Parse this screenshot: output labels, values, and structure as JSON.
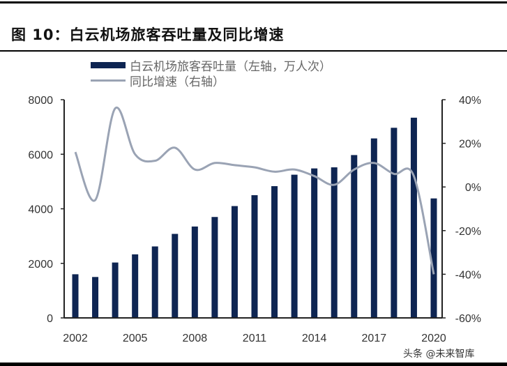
{
  "header": {
    "title": "图 10：白云机场旅客吞吐量及同比增速"
  },
  "legend": {
    "bar_label": "白云机场旅客吞吐量（左轴，万人次）",
    "line_label": "同比增速（右轴）"
  },
  "watermark": "头条 @未来智库",
  "colors": {
    "bar": "#0e2552",
    "line": "#9aa3b4",
    "axis": "#222222"
  },
  "chart_data": {
    "type": "bar+line",
    "title": "图 10：白云机场旅客吞吐量及同比增速",
    "categories": [
      "2002",
      "2003",
      "2004",
      "2005",
      "2006",
      "2007",
      "2008",
      "2009",
      "2010",
      "2011",
      "2012",
      "2013",
      "2014",
      "2015",
      "2016",
      "2017",
      "2018",
      "2019",
      "2020"
    ],
    "x_tick_labels": [
      "2002",
      "2005",
      "2008",
      "2011",
      "2014",
      "2017",
      "2020"
    ],
    "series": [
      {
        "name": "白云机场旅客吞吐量（左轴，万人次）",
        "type": "bar",
        "axis": "left",
        "values": [
          1600,
          1500,
          2030,
          2330,
          2620,
          3080,
          3350,
          3700,
          4100,
          4500,
          4830,
          5250,
          5480,
          5520,
          5970,
          6580,
          6970,
          7340,
          4380
        ]
      },
      {
        "name": "同比增速（右轴）",
        "type": "line",
        "axis": "right",
        "values": [
          16,
          -6,
          36,
          15,
          12,
          18,
          8,
          11,
          10,
          9,
          7,
          8,
          5,
          1,
          8,
          11,
          6,
          5,
          -40
        ]
      }
    ],
    "left_axis": {
      "ylim": [
        0,
        8000
      ],
      "ticks": [
        "0",
        "2000",
        "4000",
        "6000",
        "8000"
      ]
    },
    "right_axis": {
      "ylim": [
        -60,
        40
      ],
      "ticks": [
        "-60%",
        "-40%",
        "-20%",
        "0%",
        "20%",
        "40%"
      ]
    },
    "xlabel": "",
    "ylabel": "",
    "grid": false,
    "legend_position": "top"
  }
}
